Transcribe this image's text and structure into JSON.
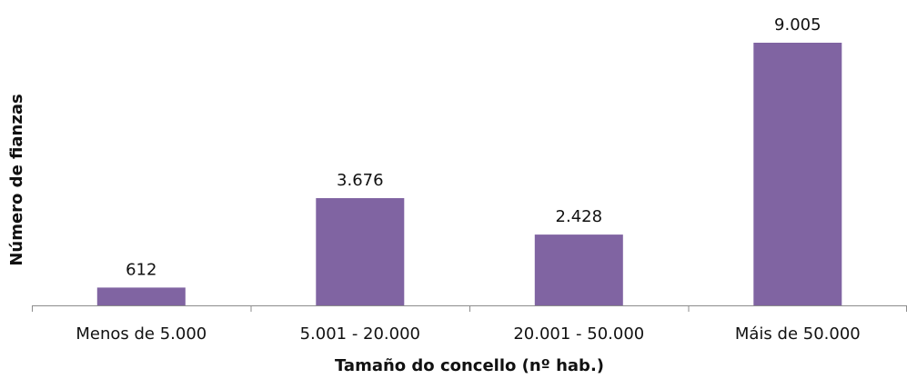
{
  "chart_data": {
    "type": "bar",
    "categories": [
      "Menos de 5.000",
      "5.001 - 20.000",
      "20.001 - 50.000",
      "Máis de 50.000"
    ],
    "values": [
      612,
      3676,
      2428,
      9005
    ],
    "value_labels": [
      "612",
      "3.676",
      "2.428",
      "9.005"
    ],
    "title": "",
    "xlabel": "Tamaño do concello (nº hab.)",
    "ylabel": "Número de fianzas",
    "ylim": [
      0,
      9005
    ],
    "grid": false,
    "legend": "none",
    "bar_color": "#8064A2"
  }
}
